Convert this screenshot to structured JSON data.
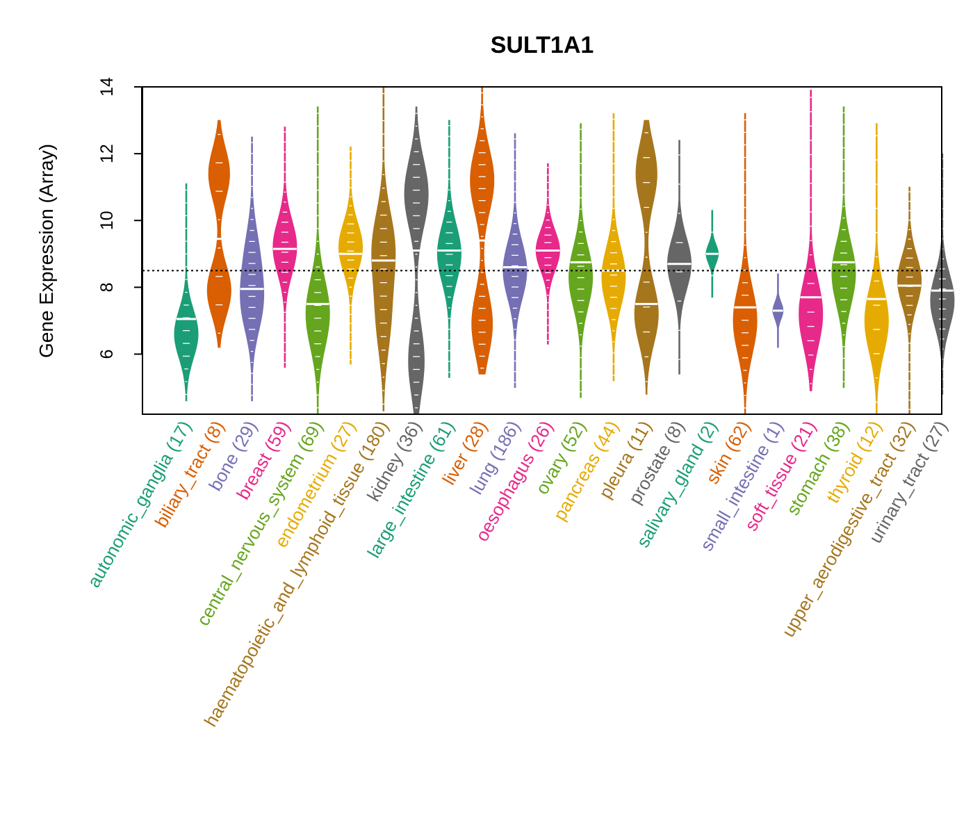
{
  "chart_data": {
    "type": "violin",
    "title": "SULT1A1",
    "ylabel": "Gene Expression (Array)",
    "ylim": [
      4.2,
      14
    ],
    "yticks": [
      6,
      8,
      10,
      12,
      14
    ],
    "reference_line": 8.5,
    "categories": [
      {
        "name": "autonomic_ganglia",
        "n": 17,
        "label": "autonomic_ganglia (17)",
        "color": "#1b9e77",
        "min": 4.6,
        "max": 11.1,
        "median": 7.05,
        "modes": [
          [
            6.6,
            1
          ]
        ]
      },
      {
        "name": "biliary_tract",
        "n": 8,
        "label": "biliary_tract (8)",
        "color": "#d95f02",
        "min": 6.2,
        "max": 13.0,
        "median": 9.45,
        "modes": [
          [
            7.9,
            0.9
          ],
          [
            11.4,
            0.8
          ]
        ]
      },
      {
        "name": "bone",
        "n": 29,
        "label": "bone (29)",
        "color": "#7570b3",
        "min": 4.6,
        "max": 12.5,
        "median": 7.95,
        "modes": [
          [
            7.5,
            1
          ],
          [
            9.0,
            0.6
          ]
        ]
      },
      {
        "name": "breast",
        "n": 59,
        "label": "breast (59)",
        "color": "#e7298a",
        "min": 5.6,
        "max": 12.8,
        "median": 9.15,
        "modes": [
          [
            9.2,
            1
          ]
        ]
      },
      {
        "name": "central_nervous_system",
        "n": 69,
        "label": "central_nervous_system (69)",
        "color": "#66a61e",
        "min": 4.2,
        "max": 13.4,
        "median": 7.5,
        "modes": [
          [
            7.2,
            1
          ]
        ]
      },
      {
        "name": "endometrium",
        "n": 27,
        "label": "endometrium (27)",
        "color": "#e6ab02",
        "min": 5.7,
        "max": 12.2,
        "median": 9.0,
        "modes": [
          [
            9.2,
            1
          ]
        ]
      },
      {
        "name": "haematopoietic_and_lymphoid_tissue",
        "n": 180,
        "label": "haematopoietic_and_lymphoid_tissue (180)",
        "color": "#a6761d",
        "min": 4.3,
        "max": 14.0,
        "median": 8.8,
        "modes": [
          [
            9.2,
            1
          ],
          [
            7.0,
            0.6
          ]
        ]
      },
      {
        "name": "kidney",
        "n": 36,
        "label": "kidney (36)",
        "color": "#666666",
        "min": 4.2,
        "max": 13.4,
        "median": 9.1,
        "modes": [
          [
            10.8,
            0.9
          ],
          [
            5.8,
            0.6
          ]
        ]
      },
      {
        "name": "large_intestine",
        "n": 61,
        "label": "large_intestine (61)",
        "color": "#1b9e77",
        "min": 5.3,
        "max": 13.0,
        "median": 9.1,
        "modes": [
          [
            9.0,
            1
          ]
        ]
      },
      {
        "name": "liver",
        "n": 28,
        "label": "liver (28)",
        "color": "#d95f02",
        "min": 5.4,
        "max": 14.0,
        "median": 9.4,
        "modes": [
          [
            11.2,
            0.8
          ],
          [
            6.9,
            0.7
          ]
        ]
      },
      {
        "name": "lung",
        "n": 186,
        "label": "lung (186)",
        "color": "#7570b3",
        "min": 5.0,
        "max": 12.6,
        "median": 8.6,
        "modes": [
          [
            8.5,
            1
          ]
        ]
      },
      {
        "name": "oesophagus",
        "n": 26,
        "label": "oesophagus (26)",
        "color": "#e7298a",
        "min": 6.3,
        "max": 11.7,
        "median": 9.1,
        "modes": [
          [
            9.1,
            1
          ]
        ]
      },
      {
        "name": "ovary",
        "n": 52,
        "label": "ovary (52)",
        "color": "#66a61e",
        "min": 4.7,
        "max": 12.9,
        "median": 8.75,
        "modes": [
          [
            8.3,
            1
          ]
        ]
      },
      {
        "name": "pancreas",
        "n": 44,
        "label": "pancreas (44)",
        "color": "#e6ab02",
        "min": 5.2,
        "max": 13.2,
        "median": 8.5,
        "modes": [
          [
            8.3,
            1
          ]
        ]
      },
      {
        "name": "pleura",
        "n": 11,
        "label": "pleura (11)",
        "color": "#a6761d",
        "min": 4.8,
        "max": 13.0,
        "median": 7.5,
        "modes": [
          [
            11.4,
            0.8
          ],
          [
            7.2,
            0.9
          ]
        ]
      },
      {
        "name": "prostate",
        "n": 8,
        "label": "prostate (8)",
        "color": "#666666",
        "min": 5.4,
        "max": 12.4,
        "median": 8.7,
        "modes": [
          [
            8.7,
            1
          ]
        ]
      },
      {
        "name": "salivary_gland",
        "n": 2,
        "label": "salivary_gland (2)",
        "color": "#1b9e77",
        "min": 7.7,
        "max": 10.3,
        "median": 9.0,
        "modes": [
          [
            9.0,
            0.6
          ]
        ]
      },
      {
        "name": "skin",
        "n": 62,
        "label": "skin (62)",
        "color": "#d95f02",
        "min": 4.2,
        "max": 13.2,
        "median": 7.4,
        "modes": [
          [
            7.0,
            1
          ]
        ]
      },
      {
        "name": "small_intestine",
        "n": 1,
        "label": "small_intestine (1)",
        "color": "#7570b3",
        "min": 6.2,
        "max": 8.4,
        "median": 7.3,
        "modes": [
          [
            7.3,
            0.3
          ]
        ]
      },
      {
        "name": "soft_tissue",
        "n": 21,
        "label": "soft_tissue (21)",
        "color": "#e7298a",
        "min": 4.9,
        "max": 13.9,
        "median": 7.7,
        "modes": [
          [
            7.2,
            1
          ]
        ]
      },
      {
        "name": "stomach",
        "n": 38,
        "label": "stomach (38)",
        "color": "#66a61e",
        "min": 5.0,
        "max": 13.4,
        "median": 8.75,
        "modes": [
          [
            8.4,
            1
          ]
        ]
      },
      {
        "name": "thyroid",
        "n": 12,
        "label": "thyroid (12)",
        "color": "#e6ab02",
        "min": 4.2,
        "max": 12.9,
        "median": 7.65,
        "modes": [
          [
            7.0,
            1
          ]
        ]
      },
      {
        "name": "upper_aerodigestive_tract",
        "n": 32,
        "label": "upper_aerodigestive_tract (32)",
        "color": "#a6761d",
        "min": 4.2,
        "max": 11.0,
        "median": 8.05,
        "modes": [
          [
            8.2,
            1
          ]
        ]
      },
      {
        "name": "urinary_tract",
        "n": 27,
        "label": "urinary_tract (27)",
        "color": "#666666",
        "min": 4.8,
        "max": 12.0,
        "median": 7.9,
        "modes": [
          [
            7.6,
            1
          ]
        ]
      }
    ]
  }
}
